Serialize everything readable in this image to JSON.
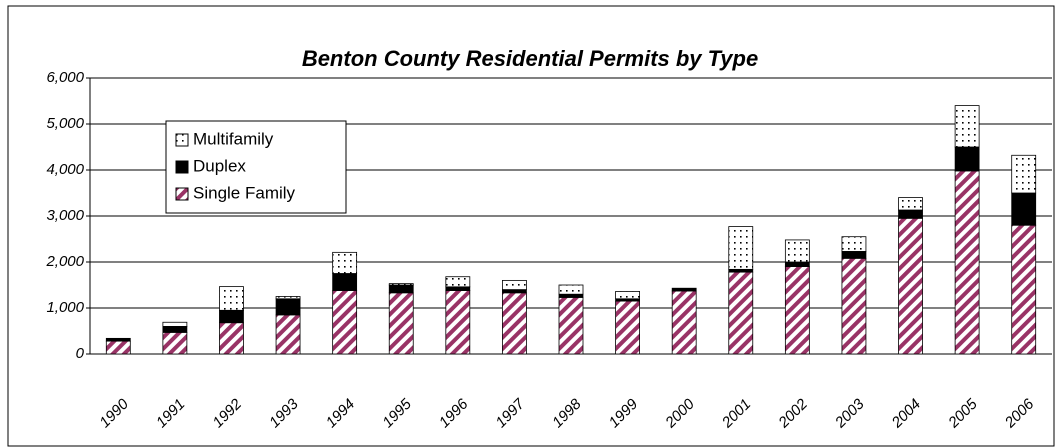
{
  "chart_data": {
    "type": "stacked_bar",
    "title": "Benton County Residential Permits by Type",
    "categories": [
      "1990",
      "1991",
      "1992",
      "1993",
      "1994",
      "1995",
      "1996",
      "1997",
      "1998",
      "1999",
      "2000",
      "2001",
      "2002",
      "2003",
      "2004",
      "2005",
      "2006"
    ],
    "series": [
      {
        "name": "Single Family",
        "color": "#993366",
        "values": [
          280,
          470,
          680,
          850,
          1380,
          1330,
          1380,
          1330,
          1230,
          1150,
          1370,
          1780,
          1900,
          2080,
          2950,
          3980,
          2800
        ]
      },
      {
        "name": "Duplex",
        "color": "#000000",
        "values": [
          60,
          130,
          270,
          350,
          370,
          170,
          80,
          70,
          70,
          50,
          60,
          60,
          100,
          150,
          180,
          520,
          700
        ]
      },
      {
        "name": "Multifamily",
        "color": "#000000",
        "values": [
          0,
          90,
          515,
          50,
          460,
          30,
          220,
          200,
          200,
          160,
          0,
          930,
          480,
          320,
          270,
          900,
          820
        ]
      }
    ],
    "ylim": [
      0,
      6000
    ],
    "yticks": [
      0,
      {
        "value": 1000,
        "label": "1,000"
      },
      {
        "value": 2000,
        "label": "2,000"
      },
      {
        "value": 3000,
        "label": "3,000"
      },
      {
        "value": 4000,
        "label": "4,000"
      },
      {
        "value": 5000,
        "label": "5,000"
      },
      {
        "value": 6000,
        "label": "6,000"
      }
    ],
    "grid": true,
    "legend": "upper left"
  }
}
